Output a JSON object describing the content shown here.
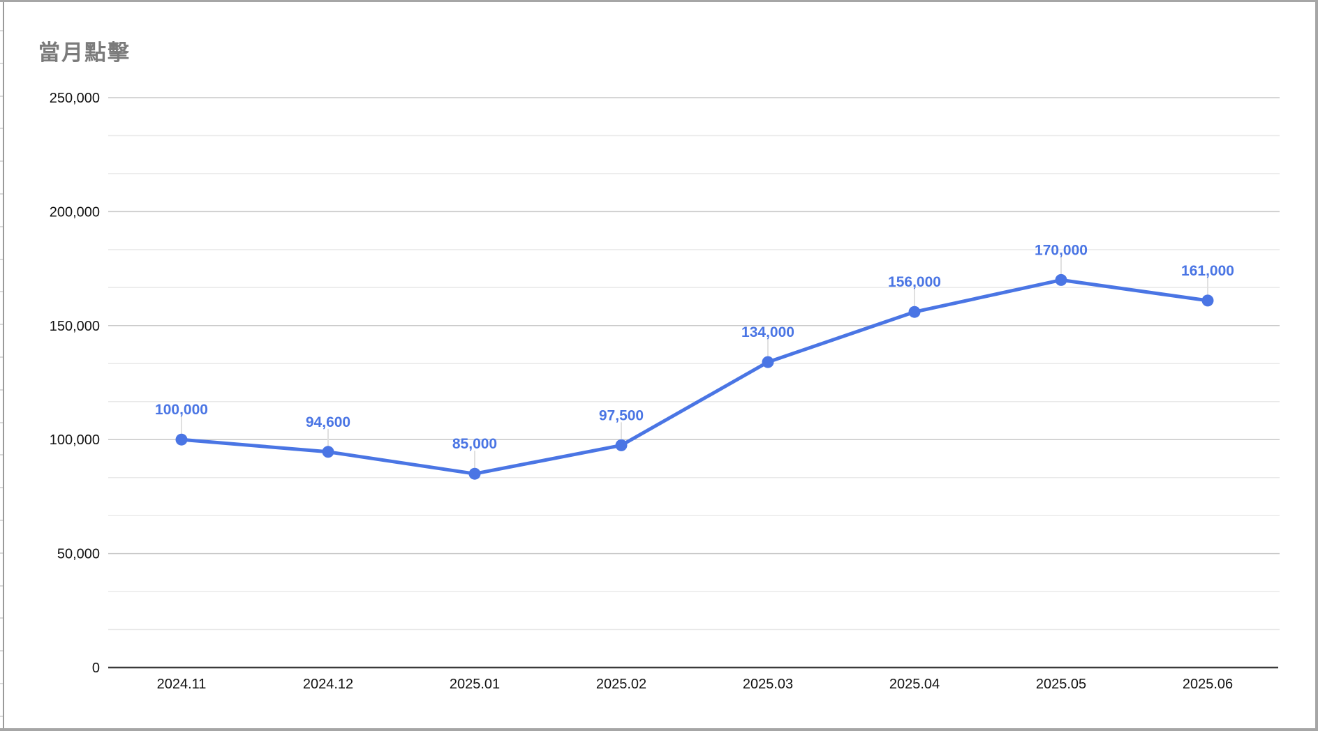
{
  "colors": {
    "series": "#4a75e4",
    "title": "#7b7b7b",
    "axis_text": "#111111",
    "major_gridline": "#c9c9c9",
    "minor_gridline": "#e9e9e9",
    "axis_line": "#3a3a3a",
    "leader_line": "#e0e0e0",
    "frame_border": "#a6a6a6",
    "sheet_tick": "#d9d9d9",
    "background": "#ffffff"
  },
  "chart_data": {
    "type": "line",
    "title": "當月點擊",
    "categories": [
      "2024.11",
      "2024.12",
      "2025.01",
      "2025.02",
      "2025.03",
      "2025.04",
      "2025.05",
      "2025.06"
    ],
    "values": [
      100000,
      94600,
      85000,
      97500,
      134000,
      156000,
      170000,
      161000
    ],
    "value_labels": [
      "100,000",
      "94,600",
      "85,000",
      "97,500",
      "134,000",
      "156,000",
      "170,000",
      "161,000"
    ],
    "ylim": [
      0,
      250000
    ],
    "y_tick_interval": 50000,
    "y_tick_labels": [
      "0",
      "50,000",
      "100,000",
      "150,000",
      "200,000",
      "250,000"
    ],
    "minor_gridlines_per_major": 2,
    "xlabel": "",
    "ylabel": "",
    "legend": "none",
    "grid": "horizontal",
    "data_labels": "above-points"
  }
}
